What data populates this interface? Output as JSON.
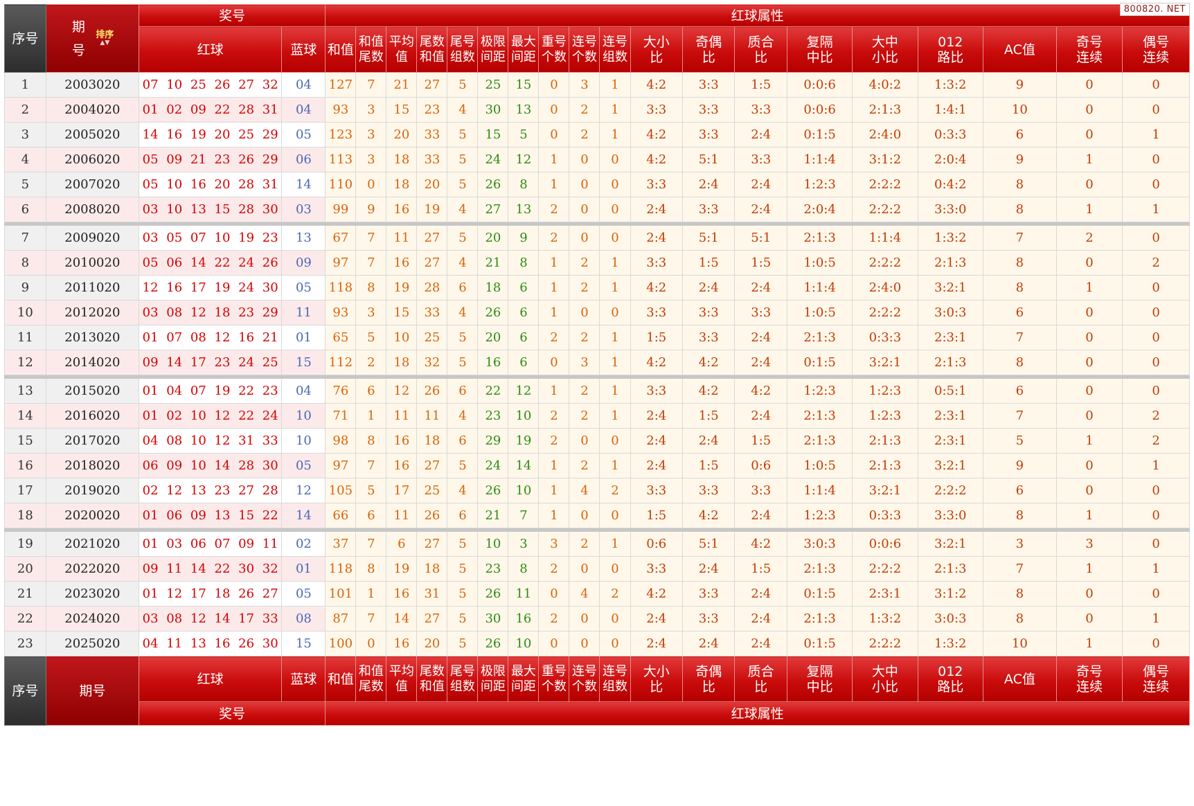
{
  "watermark": "800820. NET",
  "header": {
    "seq": "序号",
    "period": "期号",
    "period_top": "期号",
    "sort": "排序",
    "sort_arrows": "▲▼",
    "prize": "奖号",
    "attrs": "红球属性",
    "red": "红球",
    "blue": "蓝球",
    "cols": [
      "和值",
      [
        "和值",
        "尾数"
      ],
      [
        "平均",
        "值"
      ],
      [
        "尾数",
        "和值"
      ],
      [
        "尾号",
        "组数"
      ],
      [
        "极限",
        "间距"
      ],
      [
        "最大",
        "间距"
      ],
      [
        "重号",
        "个数"
      ],
      [
        "连号",
        "个数"
      ],
      [
        "连号",
        "组数"
      ],
      [
        "大小",
        "比"
      ],
      [
        "奇偶",
        "比"
      ],
      [
        "质合",
        "比"
      ],
      [
        "复隔",
        "中比"
      ],
      [
        "大中",
        "小比"
      ],
      [
        "012",
        "路比"
      ],
      "AC值",
      [
        "奇号",
        "连续"
      ],
      [
        "偶号",
        "连续"
      ]
    ]
  },
  "groups": [
    [
      [
        "1",
        "2003020",
        "07 10 25 26 27 32",
        "04",
        "127",
        "7",
        "21",
        "27",
        "5",
        "25",
        "15",
        "0",
        "3",
        "1",
        "4:2",
        "3:3",
        "1:5",
        "0:0:6",
        "4:0:2",
        "1:3:2",
        "9",
        "0",
        "0"
      ],
      [
        "2",
        "2004020",
        "01 02 09 22 28 31",
        "04",
        "93",
        "3",
        "15",
        "23",
        "4",
        "30",
        "13",
        "0",
        "2",
        "1",
        "3:3",
        "3:3",
        "3:3",
        "0:0:6",
        "2:1:3",
        "1:4:1",
        "10",
        "0",
        "0"
      ],
      [
        "3",
        "2005020",
        "14 16 19 20 25 29",
        "05",
        "123",
        "3",
        "20",
        "33",
        "5",
        "15",
        "5",
        "0",
        "2",
        "1",
        "4:2",
        "3:3",
        "2:4",
        "0:1:5",
        "2:4:0",
        "0:3:3",
        "6",
        "0",
        "1"
      ],
      [
        "4",
        "2006020",
        "05 09 21 23 26 29",
        "06",
        "113",
        "3",
        "18",
        "33",
        "5",
        "24",
        "12",
        "1",
        "0",
        "0",
        "4:2",
        "5:1",
        "3:3",
        "1:1:4",
        "3:1:2",
        "2:0:4",
        "9",
        "1",
        "0"
      ],
      [
        "5",
        "2007020",
        "05 10 16 20 28 31",
        "14",
        "110",
        "0",
        "18",
        "20",
        "5",
        "26",
        "8",
        "1",
        "0",
        "0",
        "3:3",
        "2:4",
        "2:4",
        "1:2:3",
        "2:2:2",
        "0:4:2",
        "8",
        "0",
        "0"
      ],
      [
        "6",
        "2008020",
        "03 10 13 15 28 30",
        "03",
        "99",
        "9",
        "16",
        "19",
        "4",
        "27",
        "13",
        "2",
        "0",
        "0",
        "2:4",
        "3:3",
        "2:4",
        "2:0:4",
        "2:2:2",
        "3:3:0",
        "8",
        "1",
        "1"
      ]
    ],
    [
      [
        "7",
        "2009020",
        "03 05 07 10 19 23",
        "13",
        "67",
        "7",
        "11",
        "27",
        "5",
        "20",
        "9",
        "2",
        "0",
        "0",
        "2:4",
        "5:1",
        "5:1",
        "2:1:3",
        "1:1:4",
        "1:3:2",
        "7",
        "2",
        "0"
      ],
      [
        "8",
        "2010020",
        "05 06 14 22 24 26",
        "09",
        "97",
        "7",
        "16",
        "27",
        "4",
        "21",
        "8",
        "1",
        "2",
        "1",
        "3:3",
        "1:5",
        "1:5",
        "1:0:5",
        "2:2:2",
        "2:1:3",
        "8",
        "0",
        "2"
      ],
      [
        "9",
        "2011020",
        "12 16 17 19 24 30",
        "05",
        "118",
        "8",
        "19",
        "28",
        "6",
        "18",
        "6",
        "1",
        "2",
        "1",
        "4:2",
        "2:4",
        "2:4",
        "1:1:4",
        "2:4:0",
        "3:2:1",
        "8",
        "1",
        "0"
      ],
      [
        "10",
        "2012020",
        "03 08 12 18 23 29",
        "11",
        "93",
        "3",
        "15",
        "33",
        "4",
        "26",
        "6",
        "1",
        "0",
        "0",
        "3:3",
        "3:3",
        "3:3",
        "1:0:5",
        "2:2:2",
        "3:0:3",
        "6",
        "0",
        "0"
      ],
      [
        "11",
        "2013020",
        "01 07 08 12 16 21",
        "01",
        "65",
        "5",
        "10",
        "25",
        "5",
        "20",
        "6",
        "2",
        "2",
        "1",
        "1:5",
        "3:3",
        "2:4",
        "2:1:3",
        "0:3:3",
        "2:3:1",
        "7",
        "0",
        "0"
      ],
      [
        "12",
        "2014020",
        "09 14 17 23 24 25",
        "15",
        "112",
        "2",
        "18",
        "32",
        "5",
        "16",
        "6",
        "0",
        "3",
        "1",
        "4:2",
        "4:2",
        "2:4",
        "0:1:5",
        "3:2:1",
        "2:1:3",
        "8",
        "0",
        "0"
      ]
    ],
    [
      [
        "13",
        "2015020",
        "01 04 07 19 22 23",
        "04",
        "76",
        "6",
        "12",
        "26",
        "6",
        "22",
        "12",
        "1",
        "2",
        "1",
        "3:3",
        "4:2",
        "4:2",
        "1:2:3",
        "1:2:3",
        "0:5:1",
        "6",
        "0",
        "0"
      ],
      [
        "14",
        "2016020",
        "01 02 10 12 22 24",
        "10",
        "71",
        "1",
        "11",
        "11",
        "4",
        "23",
        "10",
        "2",
        "2",
        "1",
        "2:4",
        "1:5",
        "2:4",
        "2:1:3",
        "1:2:3",
        "2:3:1",
        "7",
        "0",
        "2"
      ],
      [
        "15",
        "2017020",
        "04 08 10 12 31 33",
        "10",
        "98",
        "8",
        "16",
        "18",
        "6",
        "29",
        "19",
        "2",
        "0",
        "0",
        "2:4",
        "2:4",
        "1:5",
        "2:1:3",
        "2:1:3",
        "2:3:1",
        "5",
        "1",
        "2"
      ],
      [
        "16",
        "2018020",
        "06 09 10 14 28 30",
        "05",
        "97",
        "7",
        "16",
        "27",
        "5",
        "24",
        "14",
        "1",
        "2",
        "1",
        "2:4",
        "1:5",
        "0:6",
        "1:0:5",
        "2:1:3",
        "3:2:1",
        "9",
        "0",
        "1"
      ],
      [
        "17",
        "2019020",
        "02 12 13 23 27 28",
        "12",
        "105",
        "5",
        "17",
        "25",
        "4",
        "26",
        "10",
        "1",
        "4",
        "2",
        "3:3",
        "3:3",
        "3:3",
        "1:1:4",
        "3:2:1",
        "2:2:2",
        "6",
        "0",
        "0"
      ],
      [
        "18",
        "2020020",
        "01 06 09 13 15 22",
        "14",
        "66",
        "6",
        "11",
        "26",
        "6",
        "21",
        "7",
        "1",
        "0",
        "0",
        "1:5",
        "4:2",
        "2:4",
        "1:2:3",
        "0:3:3",
        "3:3:0",
        "8",
        "1",
        "0"
      ]
    ],
    [
      [
        "19",
        "2021020",
        "01 03 06 07 09 11",
        "02",
        "37",
        "7",
        "6",
        "27",
        "5",
        "10",
        "3",
        "3",
        "2",
        "1",
        "0:6",
        "5:1",
        "4:2",
        "3:0:3",
        "0:0:6",
        "3:2:1",
        "3",
        "3",
        "0"
      ],
      [
        "20",
        "2022020",
        "09 11 14 22 30 32",
        "01",
        "118",
        "8",
        "19",
        "18",
        "5",
        "23",
        "8",
        "2",
        "0",
        "0",
        "3:3",
        "2:4",
        "1:5",
        "2:1:3",
        "2:2:2",
        "2:1:3",
        "7",
        "1",
        "1"
      ],
      [
        "21",
        "2023020",
        "01 12 17 18 26 27",
        "05",
        "101",
        "1",
        "16",
        "31",
        "5",
        "26",
        "11",
        "0",
        "4",
        "2",
        "4:2",
        "3:3",
        "2:4",
        "0:1:5",
        "2:3:1",
        "3:1:2",
        "8",
        "0",
        "0"
      ],
      [
        "22",
        "2024020",
        "03 08 12 14 17 33",
        "08",
        "87",
        "7",
        "14",
        "27",
        "5",
        "30",
        "16",
        "2",
        "0",
        "0",
        "2:4",
        "3:3",
        "2:4",
        "2:1:3",
        "1:3:2",
        "3:0:3",
        "8",
        "0",
        "1"
      ],
      [
        "23",
        "2025020",
        "04 11 13 16 26 30",
        "15",
        "100",
        "0",
        "16",
        "20",
        "5",
        "26",
        "10",
        "0",
        "0",
        "0",
        "2:4",
        "2:4",
        "2:4",
        "0:1:5",
        "2:2:2",
        "1:3:2",
        "10",
        "1",
        "0"
      ]
    ]
  ]
}
